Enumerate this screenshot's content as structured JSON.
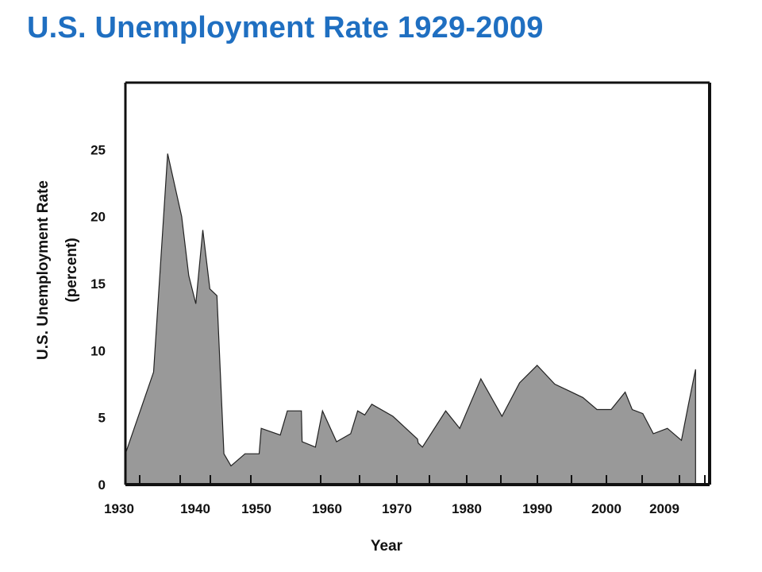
{
  "page": {
    "title": "U.S. Unemployment Rate 1929-2009"
  },
  "chart_data": {
    "type": "area",
    "title": "U.S. Unemployment Rate 1929-2009",
    "xlabel": "Year",
    "ylabel_lines": [
      "U.S. Unemployment Rate",
      "(percent)"
    ],
    "x_tick_labels": [
      "1930",
      "1940",
      "1950",
      "1960",
      "1970",
      "1980",
      "1990",
      "2000",
      "2009"
    ],
    "y_tick_labels": [
      "0",
      "5",
      "10",
      "15",
      "20",
      "25"
    ],
    "ylim": [
      0,
      30
    ],
    "xlim": [
      1929,
      2012
    ],
    "grid": false,
    "colors": {
      "fill": "#999999",
      "stroke": "#222222",
      "frame": "#111111"
    },
    "series": [
      {
        "x": [
          1929,
          1933,
          1935,
          1937,
          1938,
          1939,
          1940,
          1941,
          1942,
          1943,
          1944,
          1946,
          1948,
          1948.3,
          1951,
          1952,
          1954,
          1954.1,
          1956,
          1957,
          1959,
          1961,
          1962,
          1963,
          1964,
          1967,
          1970.5,
          1970.6,
          1971.2,
          1974.5,
          1976.5,
          1979.5,
          1982.5,
          1985,
          1987.5,
          1990,
          1992,
          1994,
          1996,
          1998,
          2000,
          2001,
          2002.5,
          2004,
          2006,
          2008,
          2009,
          2010
        ],
        "y": [
          2.3,
          8.4,
          24.7,
          20.0,
          15.6,
          13.5,
          19.0,
          14.6,
          14.1,
          2.3,
          1.4,
          2.3,
          2.3,
          4.2,
          3.7,
          5.5,
          5.5,
          3.2,
          2.8,
          5.5,
          3.2,
          3.8,
          5.5,
          5.2,
          6.0,
          5.1,
          3.4,
          3.1,
          2.8,
          5.5,
          4.2,
          7.9,
          5.1,
          7.6,
          8.9,
          7.5,
          7.0,
          6.5,
          5.6,
          5.6,
          6.9,
          5.6,
          5.3,
          3.8,
          4.2,
          3.3,
          6.0,
          8.6
        ]
      }
    ]
  }
}
